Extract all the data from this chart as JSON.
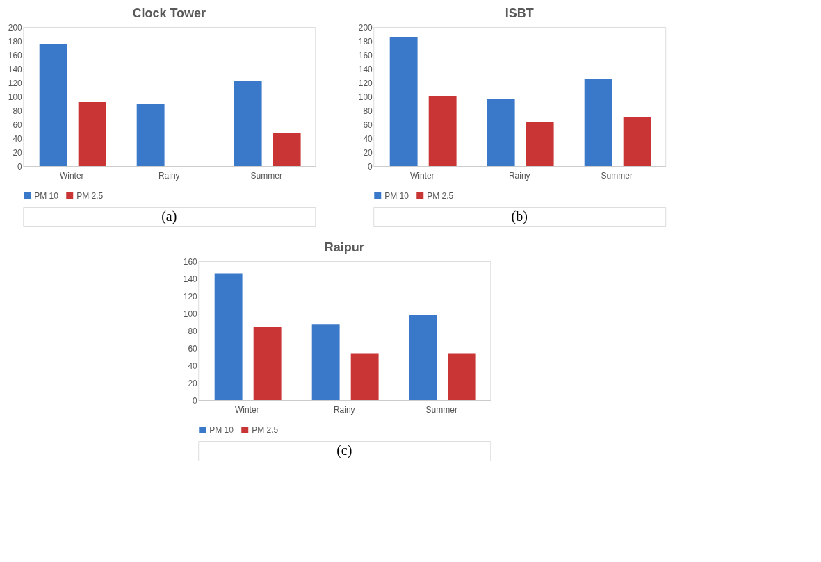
{
  "chart_data": [
    {
      "type": "bar",
      "title": "Clock Tower",
      "categories": [
        "Winter",
        "Rainy",
        "Summer"
      ],
      "ylim": [
        0,
        200
      ],
      "yticks": [
        0,
        20,
        40,
        60,
        80,
        100,
        120,
        140,
        160,
        180,
        200
      ],
      "legend": "bottom",
      "grid": false,
      "annotations": [
        "(a)"
      ],
      "series": [
        {
          "name": "PM 10",
          "color": "#3a78c9",
          "values": [
            175,
            89,
            123
          ]
        },
        {
          "name": "PM 2.5",
          "color": "#c93535",
          "values": [
            92,
            null,
            47
          ]
        }
      ]
    },
    {
      "type": "bar",
      "title": "ISBT",
      "categories": [
        "Winter",
        "Rainy",
        "Summer"
      ],
      "ylim": [
        0,
        200
      ],
      "yticks": [
        0,
        20,
        40,
        60,
        80,
        100,
        120,
        140,
        160,
        180,
        200
      ],
      "legend": "bottom",
      "grid": false,
      "annotations": [
        "(b)"
      ],
      "series": [
        {
          "name": "PM 10",
          "color": "#3a78c9",
          "values": [
            186,
            96,
            125
          ]
        },
        {
          "name": "PM 2.5",
          "color": "#c93535",
          "values": [
            101,
            64,
            71
          ]
        }
      ]
    },
    {
      "type": "bar",
      "title": "Raipur",
      "categories": [
        "Winter",
        "Rainy",
        "Summer"
      ],
      "ylim": [
        0,
        160
      ],
      "yticks": [
        0,
        20,
        40,
        60,
        80,
        100,
        120,
        140,
        160
      ],
      "legend": "bottom",
      "grid": false,
      "annotations": [
        "(c)"
      ],
      "series": [
        {
          "name": "PM 10",
          "color": "#3a78c9",
          "values": [
            146,
            87,
            98
          ]
        },
        {
          "name": "PM 2.5",
          "color": "#c93535",
          "values": [
            84,
            54,
            54
          ]
        }
      ]
    }
  ]
}
